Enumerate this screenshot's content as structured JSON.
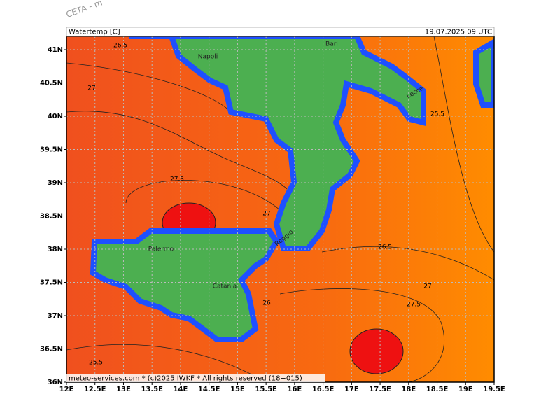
{
  "header": {
    "corner": "CETA - m",
    "title": "Watertemp [C]",
    "valid": "19.07.2025 09 UTC"
  },
  "map": {
    "lat_ticks": [
      {
        "value": 41,
        "label": "41N"
      },
      {
        "value": 40.5,
        "label": "40.5N"
      },
      {
        "value": 40,
        "label": "40N"
      },
      {
        "value": 39.5,
        "label": "39.5N"
      },
      {
        "value": 39,
        "label": "39N"
      },
      {
        "value": 38.5,
        "label": "38.5N"
      },
      {
        "value": 38,
        "label": "38N"
      },
      {
        "value": 37.5,
        "label": "37.5N"
      },
      {
        "value": 37,
        "label": "37N"
      },
      {
        "value": 36.5,
        "label": "36.5N"
      },
      {
        "value": 36,
        "label": "36N"
      }
    ],
    "lon_ticks": [
      {
        "value": 12,
        "label": "12E"
      },
      {
        "value": 12.5,
        "label": "12.5E"
      },
      {
        "value": 13,
        "label": "13E"
      },
      {
        "value": 13.5,
        "label": "13.5E"
      },
      {
        "value": 14,
        "label": "14E"
      },
      {
        "value": 14.5,
        "label": "14.5E"
      },
      {
        "value": 15,
        "label": "15E"
      },
      {
        "value": 15.5,
        "label": "15.5E"
      },
      {
        "value": 16,
        "label": "16E"
      },
      {
        "value": 16.5,
        "label": "16.5E"
      },
      {
        "value": 17,
        "label": "17E"
      },
      {
        "value": 17.5,
        "label": "17.5E"
      },
      {
        "value": 18,
        "label": "18E"
      },
      {
        "value": 18.5,
        "label": "18.5E"
      },
      {
        "value": 19,
        "label": "19E"
      },
      {
        "value": 19.5,
        "label": "19.5E"
      }
    ],
    "cities": [
      "Napoli",
      "Bari",
      "Lecce",
      "Palermo",
      "Catania",
      "Reggio"
    ],
    "contour_labels": [
      26.5,
      27,
      25.5,
      27.5,
      27,
      26.5,
      27,
      27.5,
      26,
      25.5
    ],
    "footer": "meteo-services.com * (c)2025 IWKF * All rights reserved (18+015)"
  }
}
